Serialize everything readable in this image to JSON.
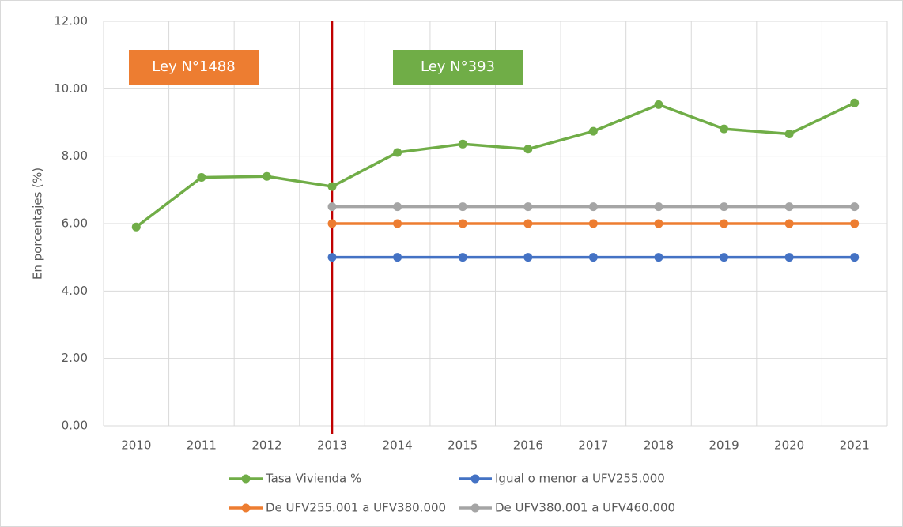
{
  "chart_data": {
    "type": "line",
    "y_label": "En porcentajes (%)",
    "categories": [
      "2010",
      "2011",
      "2012",
      "2013",
      "2014",
      "2015",
      "2016",
      "2017",
      "2018",
      "2019",
      "2020",
      "2021"
    ],
    "series": [
      {
        "name": "Tasa Vivienda %",
        "color": "#70ad47",
        "values": [
          5.9,
          7.37,
          7.4,
          7.1,
          8.11,
          8.36,
          8.21,
          8.74,
          9.53,
          8.81,
          8.66,
          9.58
        ]
      },
      {
        "name": "Igual o menor a UFV255.000",
        "color": "#4472c4",
        "values": [
          null,
          null,
          null,
          5.0,
          5.0,
          5.0,
          5.0,
          5.0,
          5.0,
          5.0,
          5.0,
          5.0
        ]
      },
      {
        "name": "De UFV255.001 a UFV380.000",
        "color": "#ed7d31",
        "values": [
          null,
          null,
          null,
          6.0,
          6.0,
          6.0,
          6.0,
          6.0,
          6.0,
          6.0,
          6.0,
          6.0
        ]
      },
      {
        "name": "De UFV380.001 a UFV460.000",
        "color": "#a5a5a5",
        "values": [
          null,
          null,
          null,
          6.5,
          6.5,
          6.5,
          6.5,
          6.5,
          6.5,
          6.5,
          6.5,
          6.5
        ]
      }
    ],
    "ylim": [
      0,
      12
    ],
    "yticks": [
      {
        "value": 0,
        "label": "0.00"
      },
      {
        "value": 2,
        "label": "2.00"
      },
      {
        "value": 4,
        "label": "4.00"
      },
      {
        "value": 6,
        "label": "6.00"
      },
      {
        "value": 8,
        "label": "8.00"
      },
      {
        "value": 10,
        "label": "10.00"
      },
      {
        "value": 12,
        "label": "12.00"
      }
    ],
    "grid": true,
    "vline": {
      "x": "2013",
      "color": "#c00000"
    },
    "annotations": [
      {
        "text": "Ley N°1488",
        "color": "#ed7d31"
      },
      {
        "text": "Ley N°393",
        "color": "#70ad47"
      }
    ],
    "legend": "bottom"
  }
}
